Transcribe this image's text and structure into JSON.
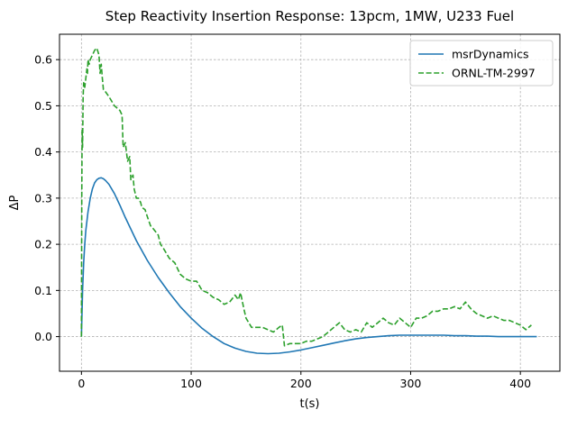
{
  "chart_data": {
    "type": "line",
    "title": "Step Reactivity Insertion Response: 13pcm, 1MW, U233 Fuel",
    "xlabel": "t(s)",
    "ylabel": "ΔP",
    "xlim": [
      -20,
      436
    ],
    "ylim": [
      -0.075,
      0.655
    ],
    "xticks": [
      0,
      100,
      200,
      300,
      400
    ],
    "xtick_labels": [
      "0",
      "100",
      "200",
      "300",
      "400"
    ],
    "yticks": [
      0.0,
      0.1,
      0.2,
      0.3,
      0.4,
      0.5,
      0.6
    ],
    "ytick_labels": [
      "0.0",
      "0.1",
      "0.2",
      "0.3",
      "0.4",
      "0.5",
      "0.6"
    ],
    "grid": true,
    "legend_position": "top-right",
    "series": [
      {
        "name": "msrDynamics",
        "color": "#1f77b4",
        "dash": "solid",
        "x": [
          0,
          1,
          2,
          3,
          4,
          6,
          8,
          10,
          12,
          14,
          16,
          18,
          20,
          22,
          25,
          30,
          35,
          40,
          50,
          60,
          70,
          80,
          90,
          100,
          110,
          120,
          130,
          140,
          150,
          160,
          170,
          180,
          190,
          200,
          210,
          220,
          230,
          240,
          250,
          260,
          270,
          280,
          290,
          300,
          310,
          320,
          330,
          340,
          350,
          360,
          370,
          380,
          390,
          400,
          410,
          415
        ],
        "y": [
          0.0,
          0.1,
          0.16,
          0.2,
          0.23,
          0.27,
          0.3,
          0.32,
          0.333,
          0.34,
          0.343,
          0.344,
          0.342,
          0.338,
          0.33,
          0.31,
          0.285,
          0.258,
          0.208,
          0.165,
          0.128,
          0.095,
          0.065,
          0.04,
          0.018,
          0.0,
          -0.015,
          -0.025,
          -0.032,
          -0.036,
          -0.037,
          -0.036,
          -0.033,
          -0.029,
          -0.024,
          -0.019,
          -0.014,
          -0.009,
          -0.005,
          -0.002,
          0.0,
          0.002,
          0.003,
          0.003,
          0.003,
          0.003,
          0.003,
          0.002,
          0.002,
          0.001,
          0.001,
          0.0,
          0.0,
          0.0,
          0.0,
          0.0
        ]
      },
      {
        "name": "ORNL-TM-2997",
        "color": "#2ca02c",
        "dash": "dashed",
        "x": [
          0,
          0.3,
          0.6,
          1,
          1.5,
          2,
          3,
          4,
          5,
          5.5,
          6,
          7,
          8,
          10,
          12,
          14,
          16,
          17,
          18,
          19,
          20,
          22,
          25,
          30,
          35,
          37,
          38,
          40,
          42,
          44,
          45,
          47,
          48,
          50,
          52,
          54,
          55,
          58,
          60,
          63,
          65,
          70,
          72,
          75,
          80,
          85,
          90,
          95,
          100,
          105,
          110,
          115,
          120,
          125,
          130,
          135,
          140,
          143,
          145,
          148,
          150,
          155,
          160,
          165,
          170,
          175,
          180,
          183,
          185,
          190,
          195,
          200,
          205,
          210,
          215,
          220,
          225,
          230,
          235,
          240,
          245,
          250,
          255,
          260,
          265,
          270,
          275,
          280,
          285,
          290,
          295,
          300,
          305,
          310,
          315,
          320,
          325,
          330,
          335,
          340,
          345,
          350,
          355,
          360,
          365,
          370,
          375,
          380,
          385,
          390,
          395,
          400,
          405,
          410
        ],
        "y": [
          0.0,
          0.3,
          0.45,
          0.41,
          0.52,
          0.55,
          0.54,
          0.56,
          0.58,
          0.57,
          0.6,
          0.59,
          0.6,
          0.61,
          0.62,
          0.625,
          0.61,
          0.57,
          0.59,
          0.56,
          0.535,
          0.53,
          0.52,
          0.5,
          0.49,
          0.48,
          0.41,
          0.42,
          0.38,
          0.39,
          0.34,
          0.35,
          0.32,
          0.3,
          0.3,
          0.29,
          0.28,
          0.275,
          0.26,
          0.24,
          0.235,
          0.22,
          0.2,
          0.19,
          0.17,
          0.16,
          0.135,
          0.125,
          0.12,
          0.12,
          0.1,
          0.095,
          0.085,
          0.08,
          0.07,
          0.075,
          0.09,
          0.08,
          0.095,
          0.06,
          0.04,
          0.02,
          0.02,
          0.02,
          0.015,
          0.01,
          0.02,
          0.025,
          -0.02,
          -0.015,
          -0.015,
          -0.015,
          -0.01,
          -0.01,
          -0.005,
          0.0,
          0.01,
          0.02,
          0.03,
          0.015,
          0.01,
          0.015,
          0.01,
          0.03,
          0.02,
          0.03,
          0.04,
          0.03,
          0.025,
          0.04,
          0.03,
          0.02,
          0.04,
          0.04,
          0.045,
          0.055,
          0.055,
          0.06,
          0.06,
          0.065,
          0.06,
          0.075,
          0.06,
          0.05,
          0.045,
          0.04,
          0.045,
          0.04,
          0.035,
          0.035,
          0.03,
          0.025,
          0.015,
          0.025
        ]
      }
    ]
  }
}
